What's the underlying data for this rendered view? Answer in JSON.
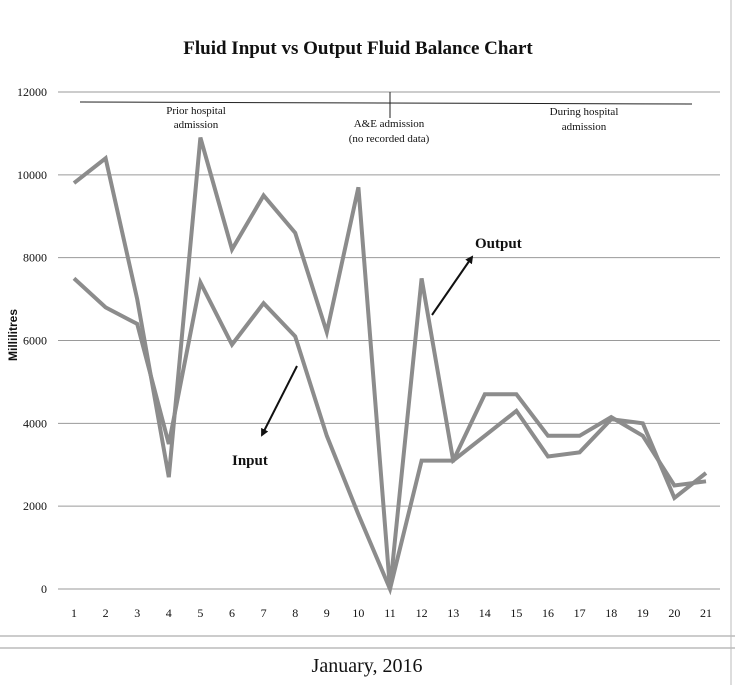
{
  "chart_data": {
    "type": "line",
    "title": "Fluid Input vs Output Fluid Balance Chart",
    "xlabel": "January, 2016",
    "ylabel": "Millilitres",
    "ylim": [
      0,
      12000
    ],
    "yticks": [
      "0",
      "2000",
      "4000",
      "6000",
      "8000",
      "10000",
      "12000"
    ],
    "categories": [
      "1",
      "2",
      "3",
      "4",
      "5",
      "6",
      "7",
      "8",
      "9",
      "10",
      "11",
      "12",
      "13",
      "14",
      "15",
      "16",
      "17",
      "18",
      "19",
      "20",
      "21"
    ],
    "grid": "horizontal",
    "series": [
      {
        "name": "Output",
        "values": [
          9800,
          10400,
          7000,
          2700,
          10900,
          8200,
          9500,
          8600,
          6200,
          9700,
          0,
          7500,
          3100,
          3700,
          4300,
          3200,
          3300,
          4100,
          4000,
          2200,
          2800
        ]
      },
      {
        "name": "Input",
        "values": [
          7500,
          6800,
          6400,
          3500,
          7400,
          5900,
          6900,
          6100,
          3700,
          1800,
          0,
          3100,
          3100,
          4700,
          4700,
          3700,
          3700,
          4150,
          3700,
          2500,
          2600
        ]
      }
    ],
    "annotations": {
      "period_1": [
        "Prior hospital",
        "admission"
      ],
      "period_2": [
        "A&E admission",
        "(no recorded data)"
      ],
      "period_3": [
        "During hospital",
        "admission"
      ]
    },
    "color": "#8c8c8c"
  }
}
